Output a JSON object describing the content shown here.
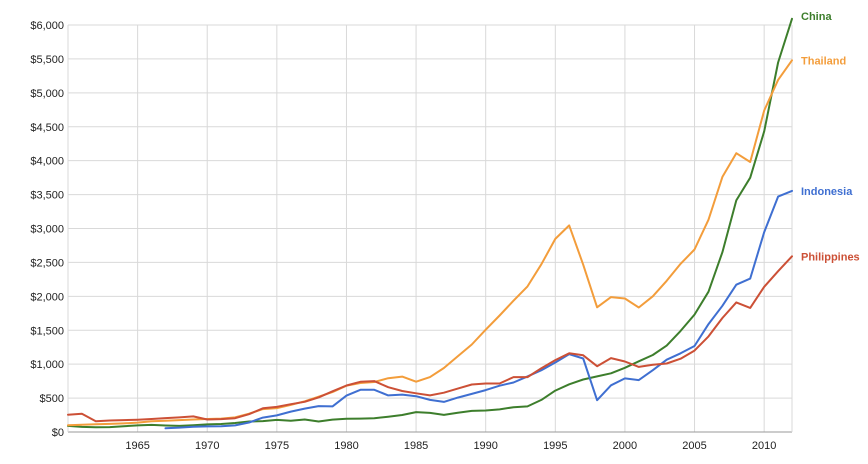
{
  "chart_data": {
    "type": "line",
    "title": "",
    "xlabel": "",
    "ylabel": "",
    "xlim": [
      1960,
      2012
    ],
    "ylim": [
      0,
      6000
    ],
    "yticks": [
      0,
      500,
      1000,
      1500,
      2000,
      2500,
      3000,
      3500,
      4000,
      4500,
      5000,
      5500,
      6000
    ],
    "ytick_labels": [
      "$0",
      "$500",
      "$1,000",
      "$1,500",
      "$2,000",
      "$2,500",
      "$3,000",
      "$3,500",
      "$4,000",
      "$4,500",
      "$5,000",
      "$5,500",
      "$6,000"
    ],
    "xticks": [
      1965,
      1970,
      1975,
      1980,
      1985,
      1990,
      1995,
      2000,
      2005,
      2010
    ],
    "xtick_labels": [
      "1965",
      "1970",
      "1975",
      "1980",
      "1985",
      "1990",
      "1995",
      "2000",
      "2005",
      "2010"
    ],
    "grid": true,
    "legend": "inline labels at line ends (right)",
    "series": [
      {
        "name": "China",
        "color": "#3d7e2c",
        "x": [
          1960,
          1961,
          1962,
          1963,
          1964,
          1965,
          1966,
          1967,
          1968,
          1969,
          1970,
          1971,
          1972,
          1973,
          1974,
          1975,
          1976,
          1977,
          1978,
          1979,
          1980,
          1981,
          1982,
          1983,
          1984,
          1985,
          1986,
          1987,
          1988,
          1989,
          1990,
          1991,
          1992,
          1993,
          1994,
          1995,
          1996,
          1997,
          1998,
          1999,
          2000,
          2001,
          2002,
          2003,
          2004,
          2005,
          2006,
          2007,
          2008,
          2009,
          2010,
          2011,
          2012
        ],
        "values": [
          90,
          75,
          70,
          72,
          85,
          98,
          104,
          96,
          90,
          100,
          112,
          118,
          132,
          155,
          160,
          178,
          165,
          185,
          155,
          183,
          195,
          197,
          203,
          225,
          250,
          294,
          281,
          252,
          284,
          311,
          317,
          333,
          366,
          377,
          473,
          610,
          703,
          774,
          820,
          865,
          946,
          1042,
          1135,
          1274,
          1490,
          1731,
          2069,
          2651,
          3414,
          3749,
          4433,
          5447,
          6091
        ]
      },
      {
        "name": "Thailand",
        "color": "#f39d3b",
        "x": [
          1960,
          1961,
          1962,
          1963,
          1964,
          1965,
          1966,
          1967,
          1968,
          1969,
          1970,
          1971,
          1972,
          1973,
          1974,
          1975,
          1976,
          1977,
          1978,
          1979,
          1980,
          1981,
          1982,
          1983,
          1984,
          1985,
          1986,
          1987,
          1988,
          1989,
          1990,
          1991,
          1992,
          1993,
          1994,
          1995,
          1996,
          1997,
          1998,
          1999,
          2000,
          2001,
          2002,
          2003,
          2004,
          2005,
          2006,
          2007,
          2008,
          2009,
          2010,
          2011,
          2012
        ],
        "values": [
          100,
          107,
          114,
          119,
          127,
          138,
          158,
          165,
          175,
          185,
          192,
          197,
          215,
          270,
          338,
          352,
          400,
          452,
          520,
          588,
          683,
          723,
          737,
          793,
          816,
          742,
          810,
          943,
          1117,
          1290,
          1508,
          1717,
          1936,
          2147,
          2474,
          2846,
          3045,
          2467,
          1838,
          1989,
          1968,
          1836,
          2000,
          2229,
          2480,
          2690,
          3130,
          3760,
          4110,
          3980,
          4740,
          5190,
          5480
        ]
      },
      {
        "name": "Indonesia",
        "color": "#3f6fd1",
        "x": [
          1967,
          1968,
          1969,
          1970,
          1971,
          1972,
          1973,
          1974,
          1975,
          1976,
          1977,
          1978,
          1979,
          1980,
          1981,
          1982,
          1983,
          1984,
          1985,
          1986,
          1987,
          1988,
          1989,
          1990,
          1991,
          1992,
          1993,
          1994,
          1995,
          1996,
          1997,
          1998,
          1999,
          2000,
          2001,
          2002,
          2003,
          2004,
          2005,
          2006,
          2007,
          2008,
          2009,
          2010,
          2011,
          2012
        ],
        "values": [
          55,
          65,
          76,
          82,
          86,
          98,
          140,
          213,
          245,
          300,
          345,
          382,
          378,
          536,
          622,
          622,
          539,
          552,
          528,
          473,
          443,
          507,
          561,
          618,
          683,
          729,
          820,
          911,
          1025,
          1147,
          1084,
          469,
          688,
          790,
          765,
          911,
          1066,
          1160,
          1268,
          1591,
          1860,
          2172,
          2262,
          2947,
          3470,
          3555
        ]
      },
      {
        "name": "Philippines",
        "color": "#cc5036",
        "x": [
          1960,
          1961,
          1962,
          1963,
          1964,
          1965,
          1966,
          1967,
          1968,
          1969,
          1970,
          1971,
          1972,
          1973,
          1974,
          1975,
          1976,
          1977,
          1978,
          1979,
          1980,
          1981,
          1982,
          1983,
          1984,
          1985,
          1986,
          1987,
          1988,
          1989,
          1990,
          1991,
          1992,
          1993,
          1994,
          1995,
          1996,
          1997,
          1998,
          1999,
          2000,
          2001,
          2002,
          2003,
          2004,
          2005,
          2006,
          2007,
          2008,
          2009,
          2010,
          2011,
          2012
        ],
        "values": [
          255,
          268,
          158,
          170,
          175,
          182,
          192,
          205,
          215,
          230,
          185,
          190,
          203,
          262,
          350,
          370,
          410,
          445,
          510,
          600,
          685,
          740,
          750,
          660,
          605,
          570,
          540,
          580,
          640,
          700,
          715,
          715,
          810,
          810,
          940,
          1060,
          1160,
          1130,
          970,
          1090,
          1040,
          960,
          990,
          1010,
          1080,
          1200,
          1410,
          1680,
          1910,
          1830,
          2140,
          2370,
          2590
        ]
      }
    ]
  }
}
